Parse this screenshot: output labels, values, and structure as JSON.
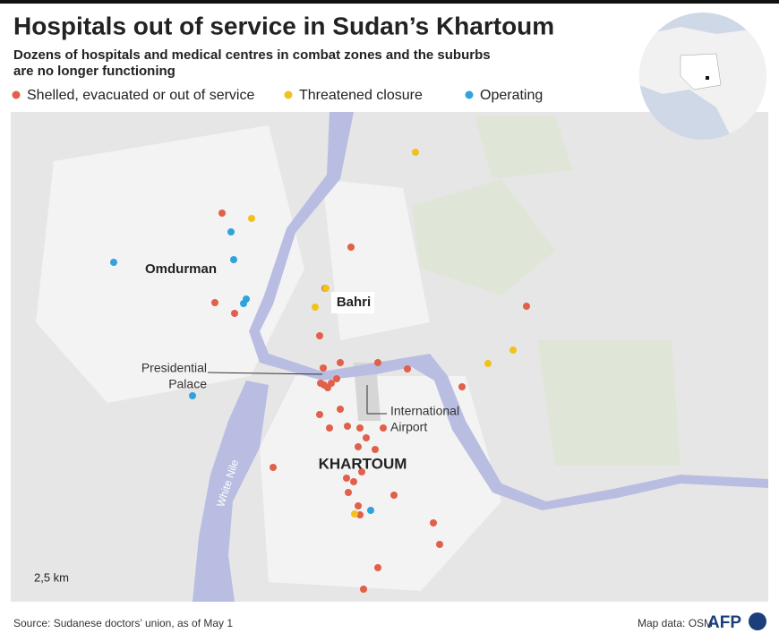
{
  "header": {
    "title": "Hospitals out of service in Sudan’s Khartoum",
    "subtitle_lines": [
      "Dozens of hospitals and medical centres in combat zones and the suburbs",
      "are no longer functioning"
    ]
  },
  "legend": [
    {
      "name": "Shelled, evacuated or out of service",
      "color": "#e0604a"
    },
    {
      "name": "Threatened closure",
      "color": "#f2c21b"
    },
    {
      "name": "Operating",
      "color": "#2fa3dc"
    }
  ],
  "map": {
    "labels": {
      "omdurman": "Omdurman",
      "bahri": "Bahri",
      "khartoum": "KHARTOUM",
      "palace": [
        "Presidential",
        "Palace"
      ],
      "airport": [
        "International",
        "Airport"
      ],
      "river": "White Nile"
    },
    "scale": "2,5 km"
  },
  "footer": {
    "source": "Source: Sudanese doctors’ union, as of May 1",
    "map_data": "Map data: OSM",
    "logo": "AFP"
  }
}
